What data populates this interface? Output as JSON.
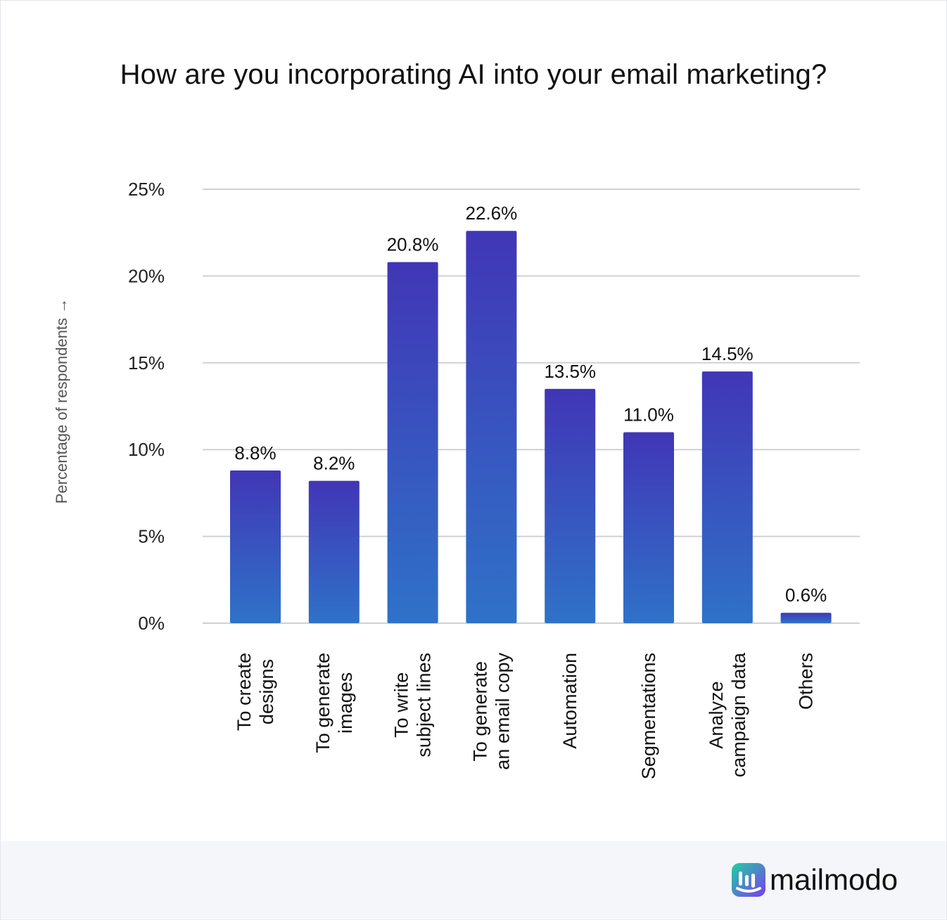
{
  "chart_data": {
    "type": "bar",
    "title": "How are you incorporating AI into your email marketing?",
    "ylabel": "Percentage of respondents →",
    "xlabel": "",
    "ylim": [
      0,
      25
    ],
    "yticks": [
      "0%",
      "5%",
      "10%",
      "15%",
      "20%",
      "25%"
    ],
    "ytick_values": [
      0,
      5,
      10,
      15,
      20,
      25
    ],
    "grid": true,
    "categories": [
      [
        "To create",
        "designs"
      ],
      [
        "To generate",
        "images"
      ],
      [
        "To write",
        "subject lines"
      ],
      [
        "To generate",
        "an email copy"
      ],
      [
        "Automation"
      ],
      [
        "Segmentations"
      ],
      [
        "Analyze",
        "campaign data"
      ],
      [
        "Others"
      ]
    ],
    "values": [
      8.8,
      8.2,
      20.8,
      22.6,
      13.5,
      11.0,
      14.5,
      0.6
    ],
    "value_labels": [
      "8.8%",
      "8.2%",
      "20.8%",
      "22.6%",
      "13.5%",
      "11.0%",
      "14.5%",
      "0.6%"
    ],
    "colors": {
      "bar_top": "#4136b6",
      "bar_bottom": "#2f72c8",
      "grid": "#cfd1d6"
    }
  },
  "brand": {
    "name": "mailmodo",
    "icon": "mailmodo-logo-icon",
    "colors": {
      "gradient_start": "#1fd1a0",
      "gradient_end": "#7a3cf0"
    }
  }
}
